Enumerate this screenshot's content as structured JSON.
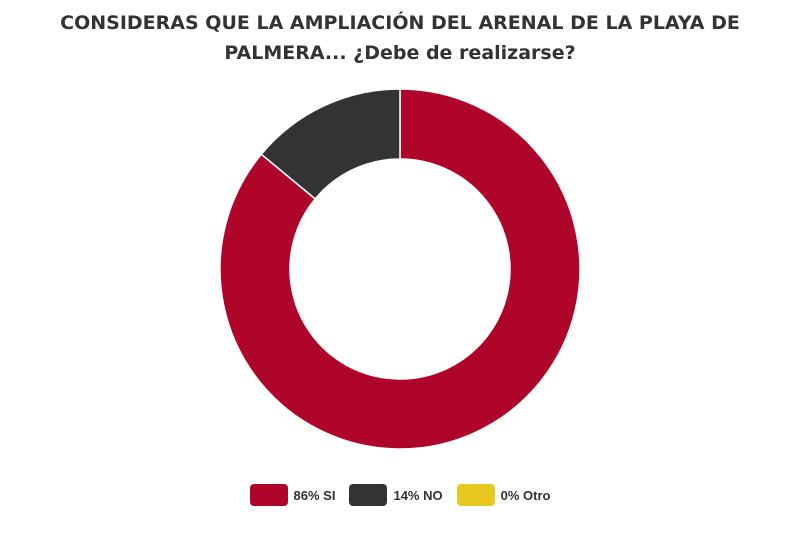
{
  "chart_data": {
    "type": "pie",
    "donut": true,
    "title_lines": [
      "CONSIDERAS QUE LA AMPLIACIÓN DEL ARENAL DE LA PLAYA DE",
      "PALMERA... ¿Debe de realizarse?"
    ],
    "categories": [
      "86% SI",
      "14% NO",
      "0% Otro"
    ],
    "values": [
      86,
      14,
      0
    ],
    "colors": [
      "#b0052a",
      "#333333",
      "#e8c81e"
    ],
    "legend_position": "bottom"
  }
}
